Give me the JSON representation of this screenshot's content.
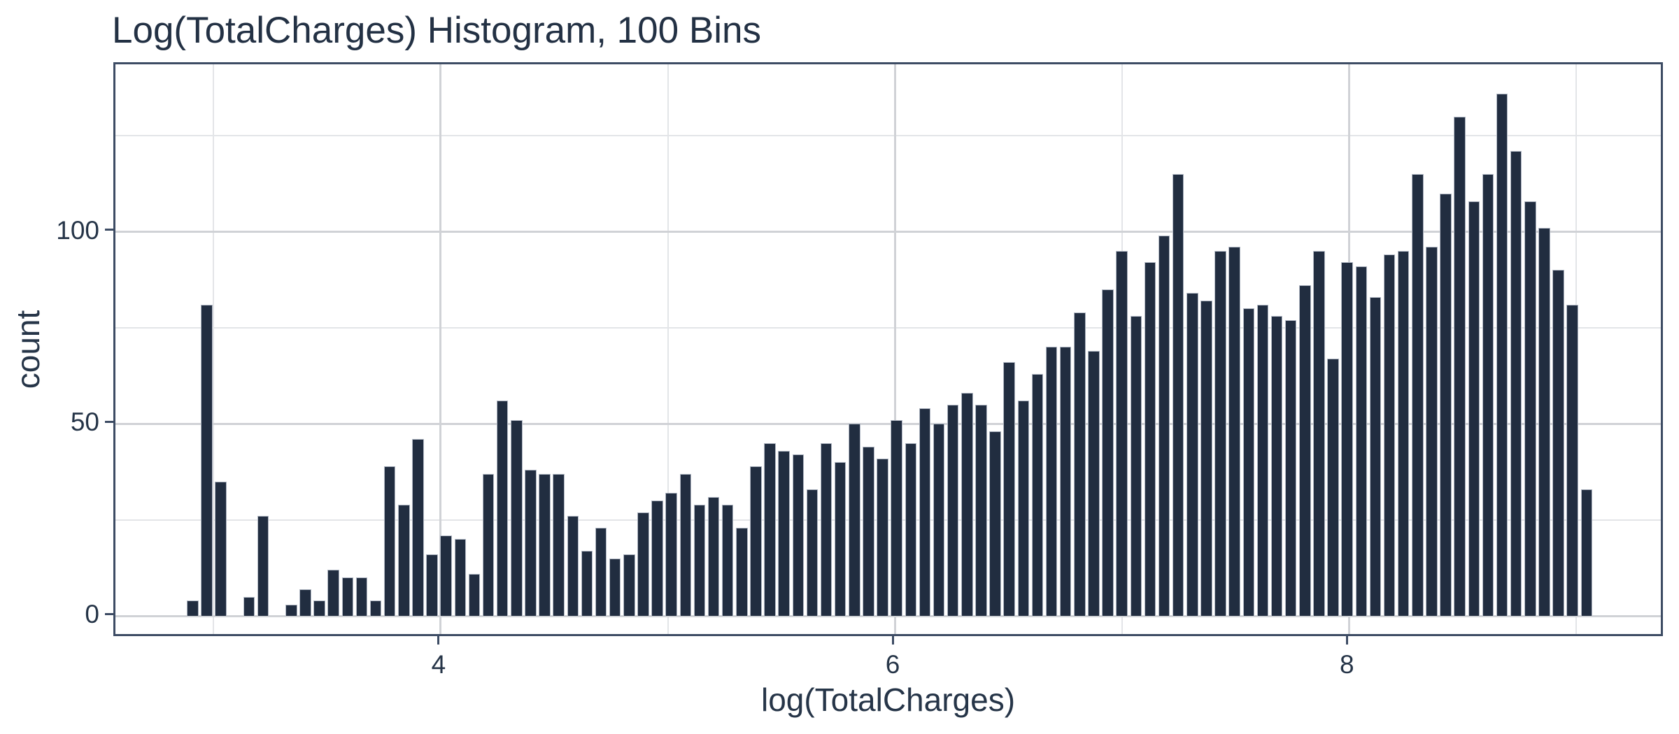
{
  "chart": {
    "title": "Log(TotalCharges) Histogram, 100 Bins",
    "x_axis_label": "log(TotalCharges)",
    "y_axis_label": "count",
    "x_tick_labels": [
      "4",
      "6",
      "8"
    ],
    "y_tick_labels": [
      "0",
      "50",
      "100"
    ]
  },
  "chart_data": {
    "type": "bar",
    "subtype": "histogram",
    "title": "Log(TotalCharges) Histogram, 100 Bins",
    "xlabel": "log(TotalCharges)",
    "ylabel": "count",
    "n_bins": 100,
    "bin_start": 2.877,
    "bin_width": 0.062,
    "x_major_ticks": [
      4,
      6,
      8
    ],
    "x_minor_gridlines": [
      3,
      5,
      7,
      9
    ],
    "y_major_ticks": [
      0,
      50,
      100
    ],
    "y_minor_gridlines": [
      25,
      75,
      125
    ],
    "xlim": [
      2.568,
      9.392
    ],
    "ylim": [
      -5.8,
      143.6
    ],
    "grid": "on",
    "legend": "none",
    "counts": [
      4,
      81,
      35,
      0,
      5,
      26,
      0,
      3,
      7,
      4,
      12,
      10,
      10,
      4,
      39,
      29,
      46,
      16,
      21,
      20,
      11,
      37,
      56,
      51,
      38,
      37,
      37,
      26,
      17,
      23,
      15,
      16,
      27,
      30,
      32,
      37,
      29,
      31,
      29,
      23,
      39,
      45,
      43,
      42,
      33,
      45,
      40,
      50,
      44,
      41,
      51,
      45,
      54,
      50,
      55,
      58,
      55,
      48,
      66,
      56,
      63,
      70,
      70,
      79,
      69,
      85,
      95,
      78,
      92,
      99,
      115,
      84,
      82,
      95,
      96,
      80,
      81,
      78,
      77,
      86,
      95,
      67,
      92,
      91,
      83,
      94,
      95,
      115,
      96,
      110,
      130,
      108,
      115,
      136,
      121,
      108,
      101,
      90,
      81,
      33
    ]
  },
  "colors": {
    "bar_fill": "#212d40",
    "bar_edge": "#c9d0da",
    "panel_border": "#3d4c64",
    "grid_major": "#d0d2d6",
    "grid_minor": "#e3e5e8",
    "text": "#263548",
    "title_text": "#233144",
    "background": "#ffffff"
  }
}
